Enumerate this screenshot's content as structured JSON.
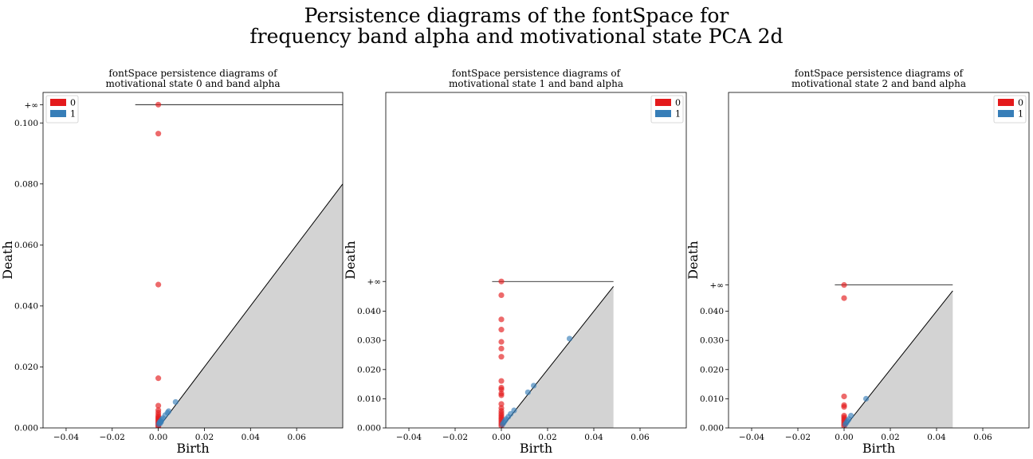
{
  "figure": {
    "title_line1": "Persistence diagrams of the fontSpace for",
    "title_line2": "frequency band alpha and motivational state PCA 2d"
  },
  "colors": {
    "h0": "#e41a1c",
    "h1": "#377eb8",
    "diagonal_fill": "#d3d3d3",
    "background": "#ffffff"
  },
  "chart_data": [
    {
      "type": "scatter",
      "title_line1": "fontSpace persistence diagrams of",
      "title_line2": "motivational state 0 and band alpha",
      "xlabel": "Birth",
      "ylabel": "Death",
      "xlim": [
        -0.05,
        0.08
      ],
      "ylim": [
        0,
        0.11
      ],
      "xticks": [
        -0.04,
        -0.02,
        0.0,
        0.02,
        0.04,
        0.06
      ],
      "xtick_labels": [
        "−0.04",
        "−0.02",
        "0.00",
        "0.02",
        "0.04",
        "0.06"
      ],
      "yticks": [
        0.0,
        0.02,
        0.04,
        0.06,
        0.08,
        0.1
      ],
      "ytick_labels": [
        "0.000",
        "0.020",
        "0.040",
        "0.060",
        "0.080",
        "0.100"
      ],
      "inf_value": 0.106,
      "inf_label": "+∞",
      "inf_line_x": [
        -0.01,
        0.08
      ],
      "diagonal_x": [
        0,
        0.08
      ],
      "legend": {
        "location": "upper left",
        "labels": [
          "0",
          "1"
        ]
      },
      "series": [
        {
          "name": "0",
          "color_key": "h0",
          "points": [
            [
              0,
              0.106
            ],
            [
              0,
              0.0965
            ],
            [
              0,
              0.047
            ],
            [
              0,
              0.0163
            ],
            [
              0,
              0.0073
            ],
            [
              0,
              0.0058
            ],
            [
              0,
              0.005
            ],
            [
              0,
              0.0042
            ],
            [
              0,
              0.0036
            ],
            [
              0,
              0.0032
            ],
            [
              0,
              0.0028
            ],
            [
              0,
              0.0024
            ],
            [
              0,
              0.002
            ],
            [
              0,
              0.0016
            ],
            [
              0,
              0.0012
            ],
            [
              0,
              0.0008
            ],
            [
              0,
              0.0004
            ]
          ]
        },
        {
          "name": "1",
          "color_key": "h1",
          "points": [
            [
              0.0002,
              0.0012
            ],
            [
              0.0005,
              0.0018
            ],
            [
              0.001,
              0.0022
            ],
            [
              0.0015,
              0.0028
            ],
            [
              0.002,
              0.0032
            ],
            [
              0.003,
              0.0042
            ],
            [
              0.004,
              0.005
            ],
            [
              0.0045,
              0.0055
            ],
            [
              0.0075,
              0.0085
            ],
            [
              0.0008,
              0.0015
            ],
            [
              0.0012,
              0.002
            ]
          ]
        }
      ]
    },
    {
      "type": "scatter",
      "title_line1": "fontSpace persistence diagrams of",
      "title_line2": "motivational state 1 and band alpha",
      "xlabel": "Birth",
      "ylabel": "Death",
      "xlim": [
        -0.05,
        0.08
      ],
      "ylim": [
        0,
        0.115
      ],
      "xticks": [
        -0.04,
        -0.02,
        0.0,
        0.02,
        0.04,
        0.06
      ],
      "xtick_labels": [
        "−0.04",
        "−0.02",
        "0.00",
        "0.02",
        "0.04",
        "0.06"
      ],
      "yticks": [
        0.0,
        0.01,
        0.02,
        0.03,
        0.04
      ],
      "ytick_labels": [
        "0.000",
        "0.010",
        "0.020",
        "0.030",
        "0.040"
      ],
      "inf_value": 0.0502,
      "inf_label": "+∞",
      "inf_line_x": [
        -0.004,
        0.0485
      ],
      "diagonal_x": [
        0,
        0.0485
      ],
      "legend": {
        "location": "upper right",
        "labels": [
          "0",
          "1"
        ]
      },
      "series": [
        {
          "name": "0",
          "color_key": "h0",
          "points": [
            [
              0,
              0.0502
            ],
            [
              0,
              0.0455
            ],
            [
              0,
              0.0372
            ],
            [
              0,
              0.0337
            ],
            [
              0,
              0.0295
            ],
            [
              0,
              0.0272
            ],
            [
              0,
              0.0244
            ],
            [
              0,
              0.0161
            ],
            [
              0,
              0.0138
            ],
            [
              0,
              0.0132
            ],
            [
              0,
              0.0118
            ],
            [
              0,
              0.0112
            ],
            [
              0,
              0.0082
            ],
            [
              0,
              0.0068
            ],
            [
              0,
              0.0058
            ],
            [
              0,
              0.005
            ],
            [
              0,
              0.0043
            ],
            [
              0,
              0.0037
            ],
            [
              0,
              0.0031
            ],
            [
              0,
              0.0025
            ],
            [
              0,
              0.0019
            ],
            [
              0,
              0.0013
            ],
            [
              0,
              0.0007
            ]
          ]
        },
        {
          "name": "1",
          "color_key": "h1",
          "points": [
            [
              0.0005,
              0.0012
            ],
            [
              0.001,
              0.0018
            ],
            [
              0.0015,
              0.0024
            ],
            [
              0.002,
              0.003
            ],
            [
              0.003,
              0.0038
            ],
            [
              0.004,
              0.0048
            ],
            [
              0.0055,
              0.006
            ],
            [
              0.0115,
              0.0122
            ],
            [
              0.014,
              0.0145
            ],
            [
              0.0295,
              0.0306
            ]
          ]
        }
      ]
    },
    {
      "type": "scatter",
      "title_line1": "fontSpace persistence diagrams of",
      "title_line2": "motivational state 2 and band alpha",
      "xlabel": "Birth",
      "ylabel": "Death",
      "xlim": [
        -0.05,
        0.08
      ],
      "ylim": [
        0,
        0.115
      ],
      "xticks": [
        -0.04,
        -0.02,
        0.0,
        0.02,
        0.04,
        0.06
      ],
      "xtick_labels": [
        "−0.04",
        "−0.02",
        "0.00",
        "0.02",
        "0.04",
        "0.06"
      ],
      "yticks": [
        0.0,
        0.01,
        0.02,
        0.03,
        0.04
      ],
      "ytick_labels": [
        "0.000",
        "0.010",
        "0.020",
        "0.030",
        "0.040"
      ],
      "inf_value": 0.049,
      "inf_label": "+∞",
      "inf_line_x": [
        -0.004,
        0.047
      ],
      "diagonal_x": [
        0,
        0.047
      ],
      "legend": {
        "location": "upper right",
        "labels": [
          "0",
          "1"
        ]
      },
      "series": [
        {
          "name": "0",
          "color_key": "h0",
          "points": [
            [
              0,
              0.049
            ],
            [
              0,
              0.0445
            ],
            [
              0,
              0.0108
            ],
            [
              0,
              0.0078
            ],
            [
              0,
              0.0072
            ],
            [
              0,
              0.0042
            ],
            [
              0,
              0.0036
            ],
            [
              0,
              0.003
            ],
            [
              0,
              0.0024
            ],
            [
              0,
              0.0018
            ],
            [
              0,
              0.0012
            ],
            [
              0,
              0.0006
            ]
          ]
        },
        {
          "name": "1",
          "color_key": "h1",
          "points": [
            [
              0.0005,
              0.0012
            ],
            [
              0.001,
              0.0018
            ],
            [
              0.0015,
              0.0024
            ],
            [
              0.002,
              0.003
            ],
            [
              0.003,
              0.0042
            ],
            [
              0.0095,
              0.01
            ]
          ]
        }
      ]
    }
  ]
}
